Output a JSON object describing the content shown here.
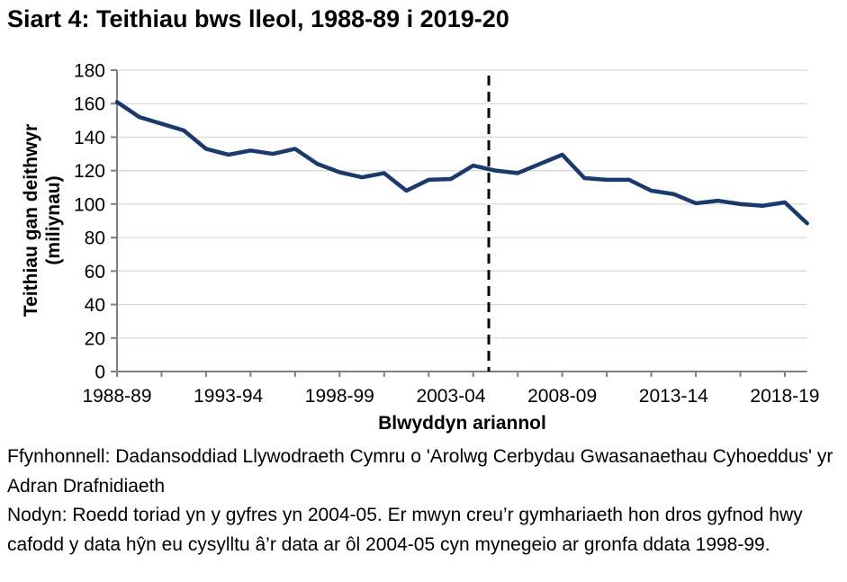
{
  "title": "Siart 4: Teithiau bws lleol, 1988-89 i 2019-20",
  "chart_data": {
    "type": "line",
    "title": "Siart 4: Teithiau bws lleol, 1988-89 i 2019-20",
    "xlabel": "Blwyddyn ariannol",
    "ylabel": "Teithiau gan deithwyr (miliynau)",
    "ylabel_lines": [
      "Teithiau gan deithwyr",
      "(miliynau)"
    ],
    "ylim": [
      0,
      180
    ],
    "ytick_step": 20,
    "grid": "horizontal",
    "legend": "none",
    "categories": [
      "1988-89",
      "1989-90",
      "1990-91",
      "1991-92",
      "1992-93",
      "1993-94",
      "1994-95",
      "1995-96",
      "1996-97",
      "1997-98",
      "1998-99",
      "1999-00",
      "2000-01",
      "2001-02",
      "2002-03",
      "2003-04",
      "2004-05",
      "2005-06",
      "2006-07",
      "2007-08",
      "2008-09",
      "2009-10",
      "2010-11",
      "2011-12",
      "2012-13",
      "2013-14",
      "2014-15",
      "2015-16",
      "2016-17",
      "2017-18",
      "2018-19",
      "2019-20"
    ],
    "values": [
      161,
      152,
      148,
      144,
      133,
      129.5,
      132,
      130,
      133,
      124,
      119,
      116,
      118.5,
      108,
      114.5,
      115,
      123,
      120,
      118.5,
      124,
      129.5,
      115.5,
      114.5,
      114.5,
      108,
      106,
      100.5,
      102,
      100,
      99,
      101,
      88.5
    ],
    "x_tick_labels": [
      "1988-89",
      "1993-94",
      "1998-99",
      "2003-04",
      "2008-09",
      "2013-14",
      "2018-19"
    ],
    "x_tick_label_indices": [
      0,
      5,
      10,
      15,
      20,
      25,
      30
    ],
    "minor_tick_every": 2,
    "break_line": {
      "style": "dashed",
      "x_index": 16.7,
      "breaks_after_category": "2004-05"
    },
    "colors": {
      "line": "#1b3a6c",
      "gridline": "#d9d9d9",
      "axis": "#808080",
      "break_line": "#000000",
      "text": "#000000"
    }
  },
  "footer": {
    "source": "Ffynhonnell: Dadansoddiad Llywodraeth Cymru o 'Arolwg Cerbydau Gwasanaethau Cyhoeddus' yr Adran Drafnidiaeth",
    "note": "Nodyn: Roedd toriad yn y gyfres yn 2004-05. Er mwyn creu’r gymhariaeth hon dros gyfnod hwy cafodd y data hŷn eu cysylltu â’r data ar ôl 2004-05 cyn mynegeio ar gronfa ddata 1998-99."
  }
}
